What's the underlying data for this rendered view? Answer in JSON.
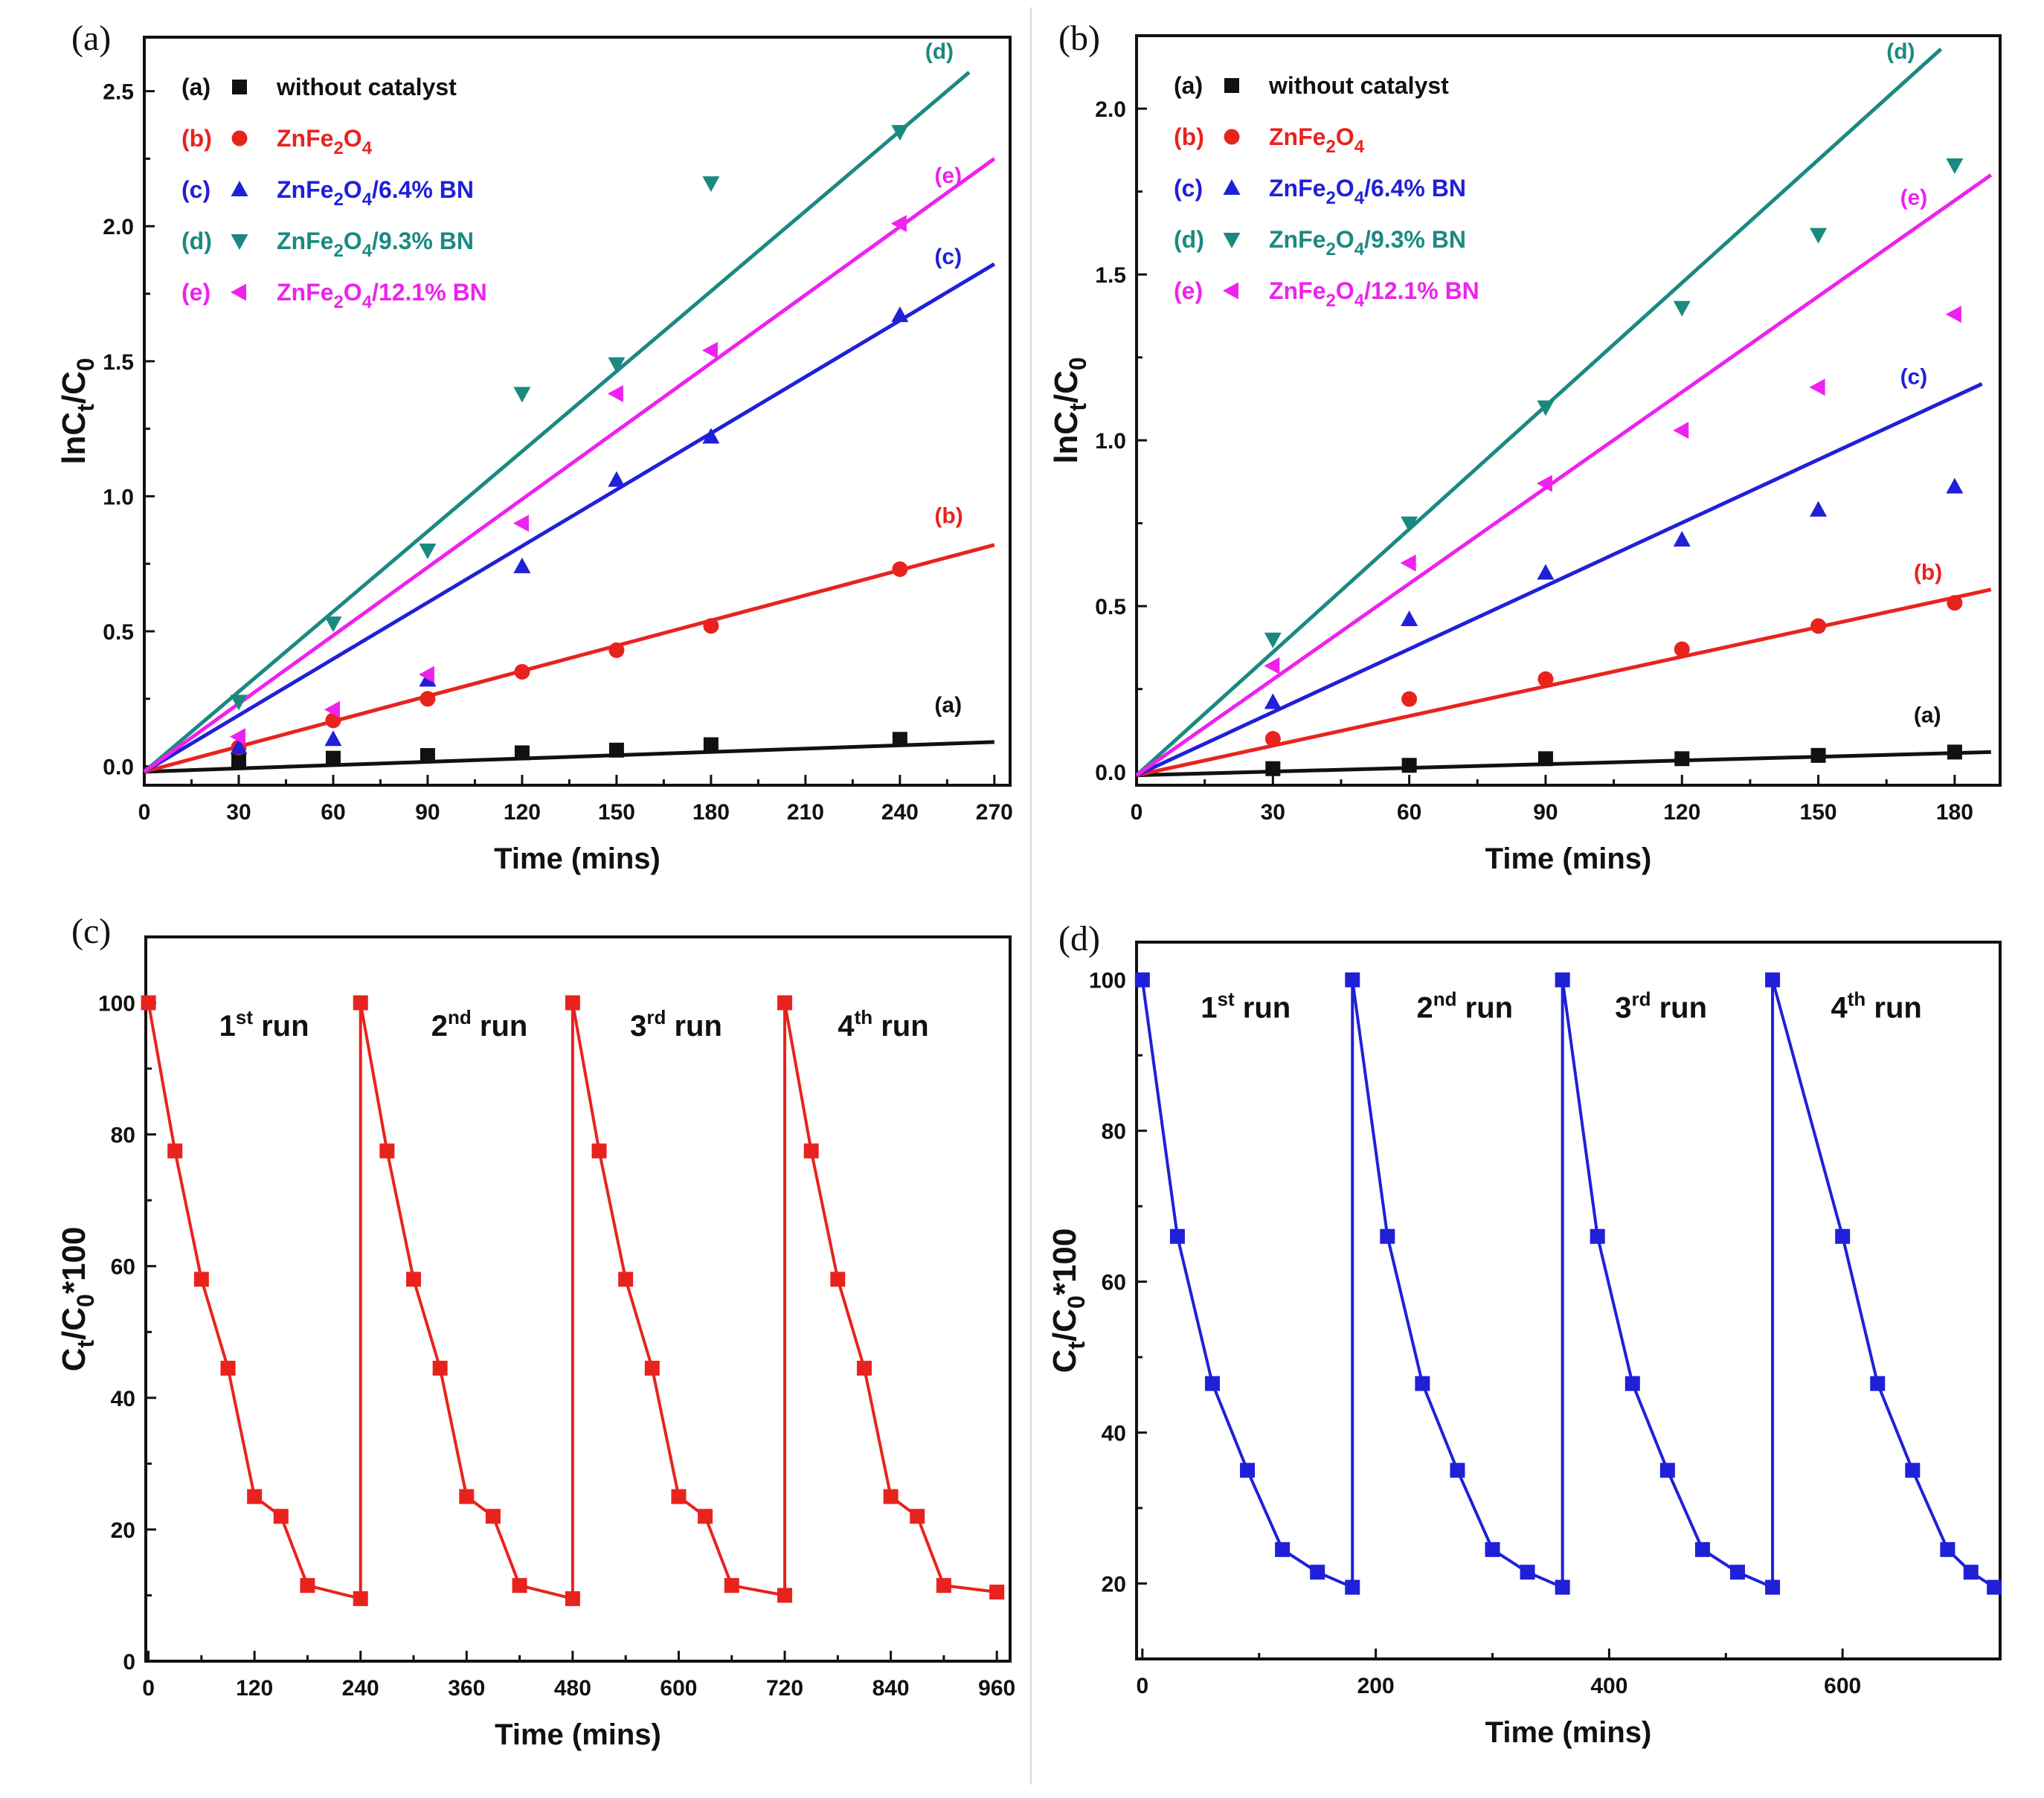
{
  "chart_data": [
    {
      "panel": "(a)",
      "type": "scatter",
      "xlabel": "Time (mins)",
      "ylabel": "lnC",
      "ylabel_sub1": "t",
      "ylabel_mid": "/C",
      "ylabel_sub2": "0",
      "xlim": [
        0,
        275
      ],
      "ylim": [
        -0.07,
        2.7
      ],
      "xticks": [
        0,
        30,
        60,
        90,
        120,
        150,
        180,
        210,
        240,
        270
      ],
      "yticks": [
        0.0,
        0.5,
        1.0,
        1.5,
        2.0,
        2.5
      ],
      "ytick_labels": [
        "0.0",
        "0.5",
        "1.0",
        "1.5",
        "2.0",
        "2.5"
      ],
      "series": [
        {
          "tag": "(a)",
          "name": "without catalyst",
          "color": "#111111",
          "marker": "square",
          "x": [
            30,
            60,
            90,
            120,
            150,
            180,
            240
          ],
          "y": [
            0.02,
            0.03,
            0.04,
            0.05,
            0.06,
            0.08,
            0.1
          ],
          "fit": [
            [
              0,
              -0.02
            ],
            [
              270,
              0.09
            ]
          ]
        },
        {
          "tag": "(b)",
          "name": "ZnFe2O4",
          "color": "#e8231e",
          "marker": "circle",
          "x": [
            30,
            60,
            90,
            120,
            150,
            180,
            240
          ],
          "y": [
            0.07,
            0.17,
            0.25,
            0.35,
            0.43,
            0.52,
            0.73
          ],
          "fit": [
            [
              0,
              -0.02
            ],
            [
              270,
              0.82
            ]
          ]
        },
        {
          "tag": "(c)",
          "name": "ZnFe2O4/6.4% BN",
          "color": "#2020d8",
          "marker": "triangle-up",
          "x": [
            30,
            60,
            90,
            120,
            150,
            180,
            240
          ],
          "y": [
            0.07,
            0.1,
            0.32,
            0.74,
            1.06,
            1.22,
            1.67
          ],
          "fit": [
            [
              0,
              -0.02
            ],
            [
              270,
              1.86
            ]
          ]
        },
        {
          "tag": "(d)",
          "name": "ZnFe2O4/9.3% BN",
          "color": "#1a8a80",
          "marker": "triangle-down",
          "x": [
            30,
            60,
            90,
            120,
            150,
            180,
            240
          ],
          "y": [
            0.24,
            0.53,
            0.8,
            1.38,
            1.49,
            2.16,
            2.35
          ],
          "fit": [
            [
              0,
              -0.02
            ],
            [
              262,
              2.57
            ]
          ]
        },
        {
          "tag": "(e)",
          "name": "ZnFe2O4/12.1% BN",
          "color": "#ee22ee",
          "marker": "triangle-left",
          "x": [
            30,
            60,
            90,
            120,
            150,
            180,
            240
          ],
          "y": [
            0.11,
            0.21,
            0.34,
            0.9,
            1.38,
            1.54,
            2.01
          ],
          "fit": [
            [
              0,
              -0.02
            ],
            [
              270,
              2.25
            ]
          ]
        }
      ],
      "legend": [
        {
          "tag": "(a)",
          "text": "without catalyst",
          "color": "#111111",
          "marker": "square"
        },
        {
          "tag": "(b)",
          "text": "ZnFe2O4",
          "color": "#e8231e",
          "marker": "circle"
        },
        {
          "tag": "(c)",
          "text": "ZnFe2O4/6.4% BN",
          "color": "#2020d8",
          "marker": "triangle-up"
        },
        {
          "tag": "(d)",
          "text": "ZnFe2O4/9.3% BN",
          "color": "#1a8a80",
          "marker": "triangle-down"
        },
        {
          "tag": "(e)",
          "text": "ZnFe2O4/12.1% BN",
          "color": "#ee22ee",
          "marker": "triangle-left"
        }
      ],
      "line_labels": [
        {
          "text": "(a)",
          "x": 251,
          "y": 0.2,
          "color": "#111111"
        },
        {
          "text": "(b)",
          "x": 251,
          "y": 0.9,
          "color": "#e8231e"
        },
        {
          "text": "(c)",
          "x": 251,
          "y": 1.86,
          "color": "#2020d8"
        },
        {
          "text": "(d)",
          "x": 248,
          "y": 2.62,
          "color": "#1a8a80"
        },
        {
          "text": "(e)",
          "x": 251,
          "y": 2.16,
          "color": "#ee22ee"
        }
      ]
    },
    {
      "panel": "(b)",
      "type": "scatter",
      "xlabel": "Time (mins)",
      "ylabel": "lnC",
      "ylabel_sub1": "t",
      "ylabel_mid": "/C",
      "ylabel_sub2": "0",
      "xlim": [
        0,
        190
      ],
      "ylim": [
        -0.04,
        2.22
      ],
      "xticks": [
        0,
        30,
        60,
        90,
        120,
        150,
        180
      ],
      "yticks": [
        0.0,
        0.5,
        1.0,
        1.5,
        2.0
      ],
      "ytick_labels": [
        "0.0",
        "0.5",
        "1.0",
        "1.5",
        "2.0"
      ],
      "series": [
        {
          "tag": "(a)",
          "name": "without catalyst",
          "color": "#111111",
          "marker": "square",
          "x": [
            30,
            60,
            90,
            120,
            150,
            180
          ],
          "y": [
            0.01,
            0.02,
            0.04,
            0.04,
            0.05,
            0.06
          ],
          "fit": [
            [
              0,
              -0.01
            ],
            [
              188,
              0.06
            ]
          ]
        },
        {
          "tag": "(b)",
          "name": "ZnFe2O4",
          "color": "#e8231e",
          "marker": "circle",
          "x": [
            30,
            60,
            90,
            120,
            150,
            180
          ],
          "y": [
            0.1,
            0.22,
            0.28,
            0.37,
            0.44,
            0.51
          ],
          "fit": [
            [
              0,
              -0.01
            ],
            [
              188,
              0.55
            ]
          ]
        },
        {
          "tag": "(c)",
          "name": "ZnFe2O4/6.4% BN",
          "color": "#2020d8",
          "marker": "triangle-up",
          "x": [
            30,
            60,
            90,
            120,
            150,
            180
          ],
          "y": [
            0.21,
            0.46,
            0.6,
            0.7,
            0.79,
            0.86
          ],
          "fit": [
            [
              0,
              -0.01
            ],
            [
              186,
              1.17
            ]
          ]
        },
        {
          "tag": "(d)",
          "name": "ZnFe2O4/9.3% BN",
          "color": "#1a8a80",
          "marker": "triangle-down",
          "x": [
            30,
            60,
            90,
            120,
            150,
            180
          ],
          "y": [
            0.4,
            0.75,
            1.1,
            1.4,
            1.62,
            1.83
          ],
          "fit": [
            [
              0,
              -0.01
            ],
            [
              177,
              2.18
            ]
          ]
        },
        {
          "tag": "(e)",
          "name": "ZnFe2O4/12.1% BN",
          "color": "#ee22ee",
          "marker": "triangle-left",
          "x": [
            30,
            60,
            90,
            120,
            150,
            180
          ],
          "y": [
            0.32,
            0.63,
            0.87,
            1.03,
            1.16,
            1.38
          ],
          "fit": [
            [
              0,
              -0.01
            ],
            [
              188,
              1.8
            ]
          ]
        }
      ],
      "legend": [
        {
          "tag": "(a)",
          "text": "without catalyst",
          "color": "#111111",
          "marker": "square"
        },
        {
          "tag": "(b)",
          "text": "ZnFe2O4",
          "color": "#e8231e",
          "marker": "circle"
        },
        {
          "tag": "(c)",
          "text": "ZnFe2O4/6.4% BN",
          "color": "#2020d8",
          "marker": "triangle-up"
        },
        {
          "tag": "(d)",
          "text": "ZnFe2O4/9.3% BN",
          "color": "#1a8a80",
          "marker": "triangle-down"
        },
        {
          "tag": "(e)",
          "text": "ZnFe2O4/12.1% BN",
          "color": "#ee22ee",
          "marker": "triangle-left"
        }
      ],
      "line_labels": [
        {
          "text": "(a)",
          "x": 171,
          "y": 0.15,
          "color": "#111111"
        },
        {
          "text": "(b)",
          "x": 171,
          "y": 0.58,
          "color": "#e8231e"
        },
        {
          "text": "(c)",
          "x": 168,
          "y": 1.17,
          "color": "#2020d8"
        },
        {
          "text": "(d)",
          "x": 165,
          "y": 2.15,
          "color": "#1a8a80"
        },
        {
          "text": "(e)",
          "x": 168,
          "y": 1.71,
          "color": "#ee22ee"
        }
      ]
    },
    {
      "panel": "(c)",
      "type": "line",
      "xlabel": "Time (mins)",
      "ylabel": "C",
      "ylabel_sub1": "t",
      "ylabel_mid": "/C",
      "ylabel_sub2": "0",
      "ylabel_tail": "*100",
      "xlim": [
        -3,
        975
      ],
      "ylim": [
        0,
        110
      ],
      "xticks": [
        0,
        120,
        240,
        360,
        480,
        600,
        720,
        840,
        960
      ],
      "yticks": [
        0,
        20,
        40,
        60,
        80,
        100
      ],
      "color": "#e8231e",
      "marker": "square",
      "series": [
        {
          "name": "red-runs",
          "x": [
            0,
            30,
            60,
            90,
            120,
            150,
            180,
            240,
            240,
            270,
            300,
            330,
            360,
            390,
            420,
            480,
            480,
            510,
            540,
            570,
            600,
            630,
            660,
            720,
            720,
            750,
            780,
            810,
            840,
            870,
            900,
            960
          ],
          "y": [
            100,
            77.5,
            58,
            44.5,
            25,
            22,
            11.5,
            9.5,
            100,
            77.5,
            58,
            44.5,
            25,
            22,
            11.5,
            9.5,
            100,
            77.5,
            58,
            44.5,
            25,
            22,
            11.5,
            10,
            100,
            77.5,
            58,
            44.5,
            25,
            22,
            11.5,
            10.5
          ]
        }
      ],
      "runs": [
        {
          "ordinal": "1",
          "suffix": "st",
          "word": "run",
          "x": 80,
          "y": 95
        },
        {
          "ordinal": "2",
          "suffix": "nd",
          "word": "run",
          "x": 320,
          "y": 95
        },
        {
          "ordinal": "3",
          "suffix": "rd",
          "word": "run",
          "x": 545,
          "y": 95
        },
        {
          "ordinal": "4",
          "suffix": "th",
          "word": "run",
          "x": 780,
          "y": 95
        }
      ]
    },
    {
      "panel": "(d)",
      "type": "line",
      "xlabel": "Time (mins)",
      "ylabel": "C",
      "ylabel_sub1": "t",
      "ylabel_mid": "/C",
      "ylabel_sub2": "0",
      "ylabel_tail": "*100",
      "xlim": [
        -5,
        735
      ],
      "ylim": [
        10,
        105
      ],
      "xticks": [
        0,
        200,
        400,
        600
      ],
      "yticks": [
        20,
        40,
        60,
        80,
        100
      ],
      "color": "#2020d8",
      "marker": "square",
      "series": [
        {
          "name": "blue-runs",
          "x": [
            0,
            30,
            60,
            90,
            120,
            150,
            180,
            180,
            210,
            240,
            270,
            300,
            330,
            360,
            360,
            390,
            420,
            450,
            480,
            510,
            540,
            540,
            600,
            630,
            660,
            690,
            710,
            730
          ],
          "y": [
            100,
            66,
            46.5,
            35,
            24.5,
            21.5,
            19.5,
            100,
            66,
            46.5,
            35,
            24.5,
            21.5,
            19.5,
            100,
            66,
            46.5,
            35,
            24.5,
            21.5,
            19.5,
            100,
            66,
            46.5,
            35,
            24.5,
            21.5,
            19.5
          ]
        }
      ],
      "runs": [
        {
          "ordinal": "1",
          "suffix": "st",
          "word": "run",
          "x": 50,
          "y": 95
        },
        {
          "ordinal": "2",
          "suffix": "nd",
          "word": "run",
          "x": 235,
          "y": 95
        },
        {
          "ordinal": "3",
          "suffix": "rd",
          "word": "run",
          "x": 405,
          "y": 95
        },
        {
          "ordinal": "4",
          "suffix": "th",
          "word": "run",
          "x": 590,
          "y": 95
        }
      ]
    }
  ]
}
